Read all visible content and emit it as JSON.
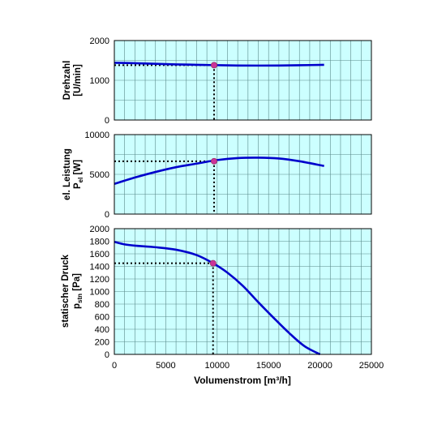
{
  "chart_data": [
    {
      "type": "line",
      "ylabel_line1": "Drehzahl",
      "ylabel_line2": "[U/min]",
      "xlim": [
        0,
        25000
      ],
      "ylim": [
        0,
        2000
      ],
      "ytick_values": [
        0,
        1000,
        2000
      ],
      "yticks": [
        "0",
        "1000",
        "2000"
      ],
      "series": [
        {
          "x": [
            0,
            2000,
            4000,
            6000,
            8000,
            10000,
            12000,
            14000,
            16000,
            18000,
            20400
          ],
          "values": [
            1440,
            1430,
            1415,
            1400,
            1390,
            1380,
            1372,
            1370,
            1372,
            1378,
            1390
          ]
        }
      ],
      "operating_point": {
        "x": 9700,
        "y": 1380
      },
      "grid": true
    },
    {
      "type": "line",
      "ylabel_line1": "el. Leistung",
      "ylabel_main": "P",
      "ylabel_sub": "el",
      "ylabel_unit": " [W]",
      "xlim": [
        0,
        25000
      ],
      "ylim": [
        0,
        10000
      ],
      "ytick_values": [
        0,
        5000,
        10000
      ],
      "yticks": [
        "0",
        "5000",
        "10000"
      ],
      "series": [
        {
          "x": [
            0,
            2000,
            4000,
            6000,
            8000,
            10000,
            12000,
            14000,
            16000,
            18000,
            20400
          ],
          "values": [
            3800,
            4600,
            5300,
            5900,
            6350,
            6800,
            7050,
            7100,
            7000,
            6650,
            6050
          ]
        }
      ],
      "operating_point": {
        "x": 9700,
        "y": 6650
      },
      "grid": true
    },
    {
      "type": "line",
      "ylabel_line1": "statischer Druck",
      "ylabel_main": "p",
      "ylabel_sub": "stn",
      "ylabel_unit": " [Pa]",
      "xlabel": "Volumenstrom [m³/h]",
      "xlim": [
        0,
        25000
      ],
      "ylim": [
        0,
        2000
      ],
      "xtick_values": [
        0,
        5000,
        10000,
        15000,
        20000,
        25000
      ],
      "xticks": [
        "0",
        "5000",
        "10000",
        "15000",
        "20000",
        "25000"
      ],
      "ytick_values": [
        0,
        200,
        400,
        600,
        800,
        1000,
        1200,
        1400,
        1600,
        1800,
        2000
      ],
      "yticks": [
        "0",
        "200",
        "400",
        "600",
        "800",
        "1000",
        "1200",
        "1400",
        "1600",
        "1800",
        "2000"
      ],
      "series": [
        {
          "x": [
            0,
            1000,
            2000,
            4000,
            6000,
            8000,
            9600,
            11000,
            12500,
            14000,
            15500,
            17000,
            18500,
            20000
          ],
          "values": [
            1790,
            1750,
            1730,
            1705,
            1665,
            1580,
            1450,
            1300,
            1090,
            830,
            580,
            340,
            130,
            0
          ]
        }
      ],
      "operating_point": {
        "x": 9600,
        "y": 1450
      },
      "grid": true
    }
  ],
  "colors": {
    "plot_bg": "#ccffff",
    "grid": "#5a8a8a",
    "curve": "#0000cc",
    "point": "#cc3399",
    "guide": "#000000"
  }
}
